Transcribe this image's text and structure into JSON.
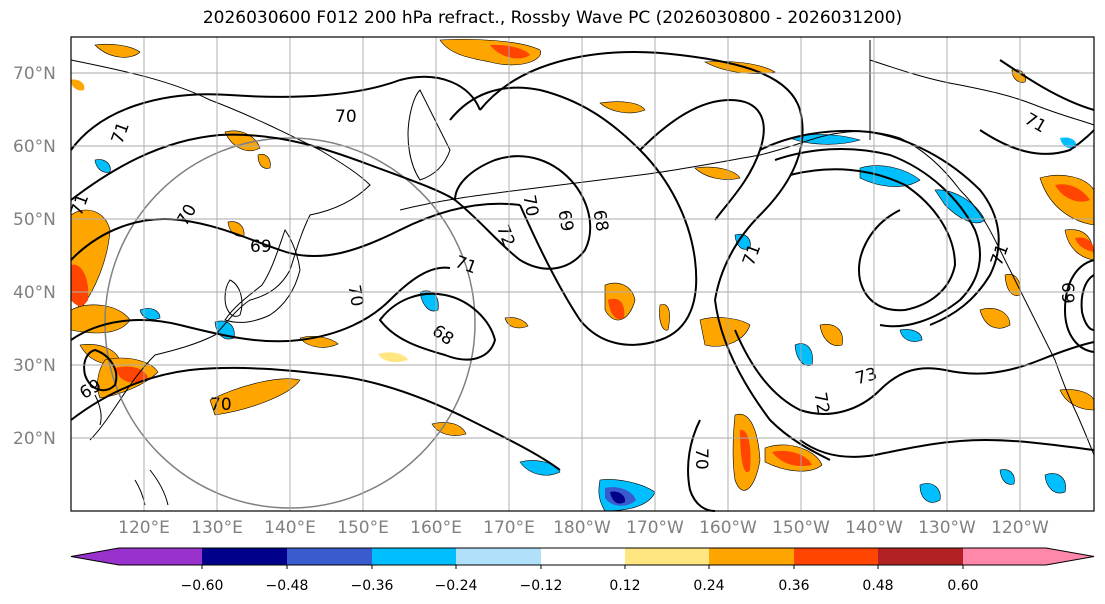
{
  "title": "2026030600 F012 200 hPa refract., Rossby Wave PC (2026030800 - 2026031200)",
  "map": {
    "lat_labels": [
      "70°N",
      "60°N",
      "50°N",
      "40°N",
      "30°N",
      "20°N"
    ],
    "lon_labels": [
      "120°E",
      "130°E",
      "140°E",
      "150°E",
      "160°E",
      "170°E",
      "180°W",
      "170°W",
      "160°W",
      "150°W",
      "140°W",
      "130°W",
      "120°W"
    ],
    "contour_labels": [
      "71",
      "70",
      "70",
      "69",
      "71",
      "72",
      "70",
      "69",
      "68",
      "71",
      "70",
      "68",
      "69",
      "70",
      "71",
      "73",
      "72",
      "70",
      "71",
      "69",
      "71"
    ]
  },
  "colorbar": {
    "ticks": [
      "−0.60",
      "−0.48",
      "−0.36",
      "−0.24",
      "−0.12",
      "0.12",
      "0.24",
      "0.36",
      "0.48",
      "0.60"
    ],
    "colors": [
      "#9932cc",
      "#00008b",
      "#3a5bcd",
      "#00bfff",
      "#b0e0fa",
      "#ffffff",
      "#ffe680",
      "#ffa500",
      "#ff4500",
      "#b22222",
      "#ff88aa"
    ]
  }
}
